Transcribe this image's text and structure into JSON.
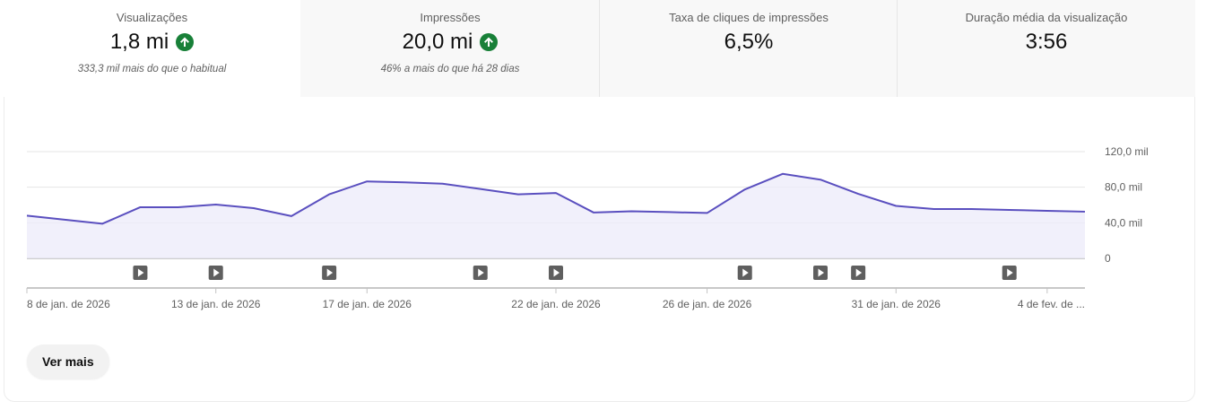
{
  "tabs": [
    {
      "label": "Visualizações",
      "value": "1,8 mi",
      "trend": "up",
      "subtitle": "333,3 mil mais do que o habitual",
      "active": true
    },
    {
      "label": "Impressões",
      "value": "20,0 mi",
      "trend": "up",
      "subtitle": "46% a mais do que há 28 dias",
      "active": false
    },
    {
      "label": "Taxa de cliques de impressões",
      "value": "6,5%",
      "trend": null,
      "subtitle": "",
      "active": false
    },
    {
      "label": "Duração média da visualização",
      "value": "3:56",
      "trend": null,
      "subtitle": "",
      "active": false
    }
  ],
  "colors": {
    "line": "#5a4fbf",
    "fill": "#ecebfa",
    "up": "#188038",
    "grid": "#e5e5e5",
    "axis": "#8a8a8a"
  },
  "chart_data": {
    "type": "area",
    "x": [
      "2026-01-08",
      "2026-01-09",
      "2026-01-10",
      "2026-01-11",
      "2026-01-12",
      "2026-01-13",
      "2026-01-14",
      "2026-01-15",
      "2026-01-16",
      "2026-01-17",
      "2026-01-18",
      "2026-01-19",
      "2026-01-20",
      "2026-01-21",
      "2026-01-22",
      "2026-01-23",
      "2026-01-24",
      "2026-01-25",
      "2026-01-26",
      "2026-01-27",
      "2026-01-28",
      "2026-01-29",
      "2026-01-30",
      "2026-01-31",
      "2026-02-01",
      "2026-02-02",
      "2026-02-03",
      "2026-02-04",
      "2026-02-05"
    ],
    "values": [
      48000,
      43500,
      39000,
      57500,
      57500,
      60500,
      56500,
      47500,
      72000,
      86500,
      85500,
      84000,
      78000,
      72000,
      73500,
      51500,
      53000,
      52000,
      51000,
      77500,
      95000,
      88500,
      72500,
      59000,
      55500,
      55500,
      54500,
      53500,
      52500
    ],
    "yticks": [
      "120,0 mil",
      "80,0 mil",
      "40,0 mil",
      "0"
    ],
    "ylim": [
      0,
      120000
    ],
    "xtick_labels": [
      "8 de jan. de 2026",
      "13 de jan. de 2026",
      "17 de jan. de 2026",
      "22 de jan. de 2026",
      "26 de jan. de 2026",
      "31 de jan. de 2026",
      "4 de fev. de ..."
    ],
    "xtick_dates": [
      "2026-01-08",
      "2026-01-13",
      "2026-01-17",
      "2026-01-22",
      "2026-01-26",
      "2026-01-31",
      "2026-02-04"
    ],
    "video_markers": [
      "2026-01-11",
      "2026-01-13",
      "2026-01-16",
      "2026-01-20",
      "2026-01-22",
      "2026-01-27",
      "2026-01-29",
      "2026-01-30",
      "2026-02-03"
    ],
    "grid": true
  },
  "actions": {
    "see_more": "Ver mais"
  }
}
